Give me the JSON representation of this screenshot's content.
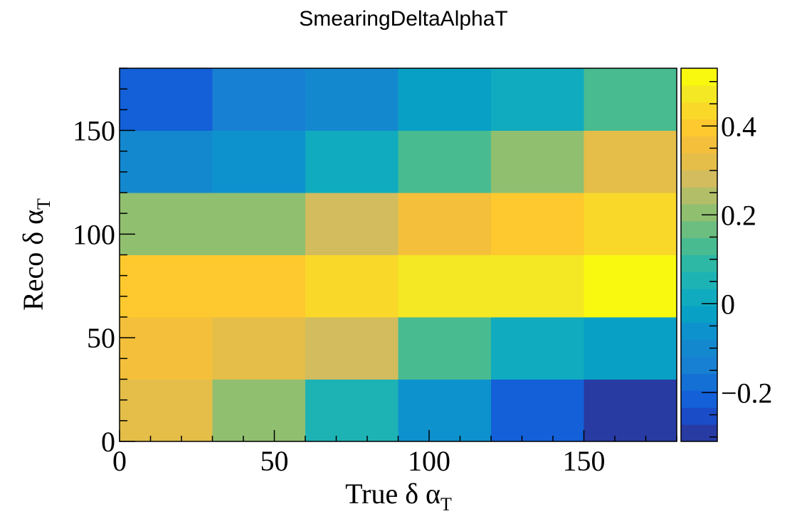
{
  "chart_data": {
    "type": "heatmap",
    "title": "SmearingDeltaAlphaT",
    "xlabel": "True δ α",
    "xlabel_sub": "T",
    "ylabel": "Reco δ α",
    "ylabel_sub": "T",
    "xlim": [
      0,
      180
    ],
    "ylim": [
      0,
      180
    ],
    "x_bins": [
      [
        0,
        30
      ],
      [
        30,
        60
      ],
      [
        60,
        90
      ],
      [
        90,
        120
      ],
      [
        120,
        150
      ],
      [
        150,
        180
      ]
    ],
    "y_bins": [
      [
        0,
        30
      ],
      [
        30,
        60
      ],
      [
        60,
        90
      ],
      [
        90,
        120
      ],
      [
        120,
        150
      ],
      [
        150,
        180
      ]
    ],
    "x_ticks": [
      0,
      50,
      100,
      150
    ],
    "y_ticks": [
      0,
      50,
      100,
      150
    ],
    "values": [
      [
        0.33,
        0.22,
        0.06,
        -0.07,
        -0.22,
        -0.31
      ],
      [
        0.36,
        0.33,
        0.27,
        0.12,
        0.03,
        -0.02
      ],
      [
        0.4,
        0.4,
        0.45,
        0.49,
        0.49,
        0.53
      ],
      [
        0.2,
        0.2,
        0.27,
        0.35,
        0.4,
        0.45
      ],
      [
        -0.1,
        -0.07,
        0.03,
        0.12,
        0.21,
        0.31
      ],
      [
        -0.2,
        -0.15,
        -0.1,
        -0.03,
        0.03,
        0.14
      ]
    ],
    "zlim": [
      -0.31,
      0.53
    ],
    "z_ticks": [
      -0.2,
      0,
      0.2,
      0.4
    ],
    "z_tick_labels": [
      "−0.2",
      "0",
      "0.2",
      "0.4"
    ],
    "palette": [
      "#283ba3",
      "#1a4cc8",
      "#1360d8",
      "#1570d6",
      "#1880d2",
      "#1488cf",
      "#0e92cd",
      "#09a0c6",
      "#10abbf",
      "#1db3b5",
      "#2db7a5",
      "#48bb91",
      "#6cbd80",
      "#90bf70",
      "#b3bf68",
      "#d2bc5e",
      "#e4be49",
      "#f4c03b",
      "#fdc92e",
      "#f9d82a",
      "#f4e723",
      "#f8f90f"
    ],
    "x_tick_labels": [
      "0",
      "50",
      "100",
      "150"
    ],
    "y_tick_labels": [
      "0",
      "50",
      "100",
      "150"
    ]
  }
}
